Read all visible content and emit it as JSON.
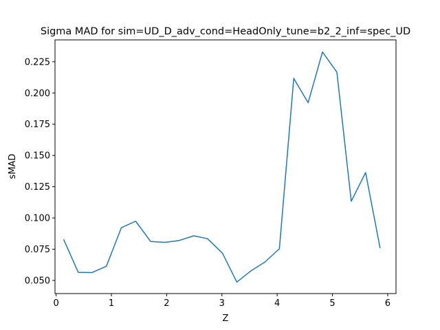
{
  "chart_data": {
    "type": "line",
    "title": "Sigma MAD for sim=UD_D_adv_cond=HeadOnly_tune=b2_2_inf=spec_UD",
    "xlabel": "Z",
    "ylabel": "sMAD",
    "xlim": [
      -0.02,
      6.15
    ],
    "ylim": [
      0.0395,
      0.2425
    ],
    "xticks": [
      0,
      1,
      2,
      3,
      4,
      5,
      6
    ],
    "yticks": [
      0.05,
      0.075,
      0.1,
      0.125,
      0.15,
      0.175,
      0.2,
      0.225
    ],
    "xtick_labels": [
      "0",
      "1",
      "2",
      "3",
      "4",
      "5",
      "6"
    ],
    "ytick_labels": [
      "0.050",
      "0.075",
      "0.100",
      "0.125",
      "0.150",
      "0.175",
      "0.200",
      "0.225"
    ],
    "grid": false,
    "legend": "none",
    "series": [
      {
        "color": "#1f77b4",
        "x": [
          0.14,
          0.4,
          0.65,
          0.91,
          1.18,
          1.44,
          1.71,
          1.97,
          2.22,
          2.49,
          2.74,
          3.01,
          3.27,
          3.52,
          3.78,
          4.04,
          4.3,
          4.56,
          4.82,
          5.08,
          5.34,
          5.6,
          5.86
        ],
        "y": [
          0.0825,
          0.0565,
          0.0563,
          0.0614,
          0.0922,
          0.0974,
          0.0812,
          0.0805,
          0.0819,
          0.0857,
          0.0834,
          0.0718,
          0.0487,
          0.0575,
          0.0648,
          0.0754,
          0.2117,
          0.1922,
          0.2328,
          0.2167,
          0.1134,
          0.1363,
          0.0763
        ]
      }
    ]
  }
}
